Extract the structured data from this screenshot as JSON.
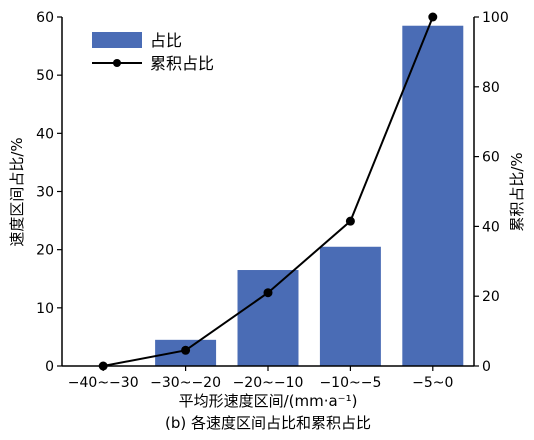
{
  "chart_data": {
    "type": "bar",
    "categories": [
      "−40~−30",
      "−30~−20",
      "−20~−10",
      "−10~−5",
      "−5~0"
    ],
    "series": [
      {
        "name": "占比",
        "type": "bar",
        "axis": "left",
        "values": [
          0,
          4.5,
          16.5,
          20.5,
          58.5
        ]
      },
      {
        "name": "累积占比",
        "type": "line",
        "axis": "right",
        "values": [
          0,
          4.5,
          21.0,
          41.5,
          100
        ]
      }
    ],
    "xlabel": "平均形速度区间/(mm·a⁻¹)",
    "ylabel": "速度区间占比/%",
    "y2label": "累积占比/%",
    "ylim": [
      0,
      60
    ],
    "y2lim": [
      0,
      100
    ],
    "yticks": [
      0,
      10,
      20,
      30,
      40,
      50,
      60
    ],
    "y2ticks": [
      0,
      20,
      40,
      60,
      80,
      100
    ],
    "caption": "(b) 各速度区间占比和累积占比",
    "legend_position": "top-left",
    "colors": {
      "bar": "#4a6cb5",
      "line": "#000000"
    },
    "grid": false
  }
}
